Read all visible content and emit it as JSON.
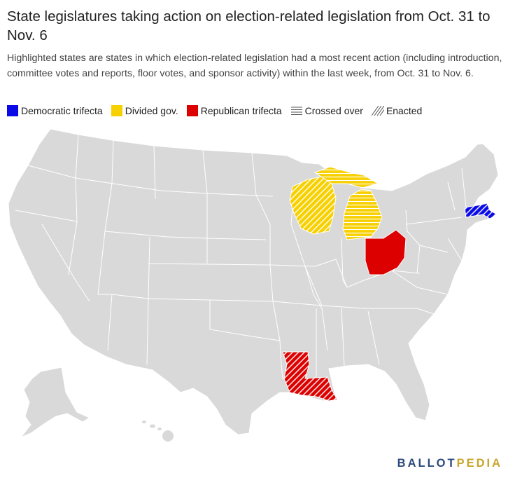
{
  "header": {
    "title": "State legislatures taking action on election-related legislation from Oct. 31 to Nov. 6",
    "subtitle": "Highlighted states are states in which election-related legislation had a most recent action (including introduction, committee votes and reports, floor votes, and sponsor activity) within the last week, from Oct. 31 to Nov. 6."
  },
  "legend": {
    "democratic": "Democratic trifecta",
    "divided": "Divided gov.",
    "republican": "Republican trifecta",
    "crossed_over": "Crossed over",
    "enacted": "Enacted"
  },
  "colors": {
    "democratic": "#0a0ae6",
    "divided": "#f7d000",
    "republican": "#dd0000",
    "base_state": "#d9d9d9",
    "border": "#ffffff"
  },
  "highlighted_states": [
    {
      "state": "Massachusetts",
      "category": "democratic",
      "pattern": "enacted"
    },
    {
      "state": "Wisconsin",
      "category": "divided",
      "pattern": "enacted"
    },
    {
      "state": "Michigan",
      "category": "divided",
      "pattern": "crossed_over"
    },
    {
      "state": "Ohio",
      "category": "republican",
      "pattern": "none"
    },
    {
      "state": "Louisiana",
      "category": "republican",
      "pattern": "enacted"
    }
  ],
  "brand": {
    "part1": "BALLOT",
    "part2": "PEDIA"
  }
}
